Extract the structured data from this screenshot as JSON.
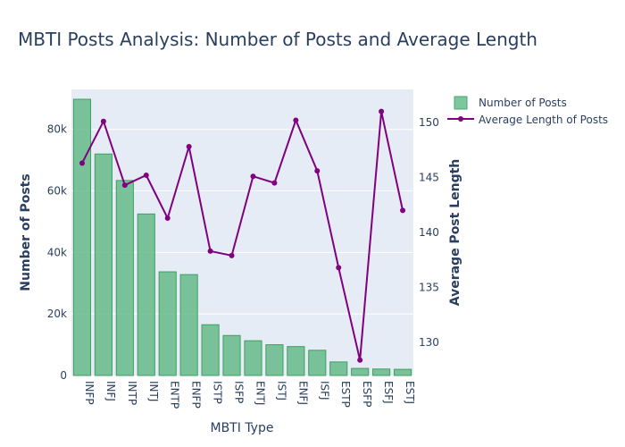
{
  "chart_data": {
    "type": "bar",
    "title": "MBTI Posts Analysis: Number of Posts and Average Length",
    "xlabel": "MBTI Type",
    "ylabel": "Number of Posts",
    "y2label": "Average Post Length",
    "categories": [
      "INFP",
      "INFJ",
      "INTP",
      "INTJ",
      "ENTP",
      "ENFP",
      "ISTP",
      "ISFP",
      "ENTJ",
      "ISTJ",
      "ENFJ",
      "ISFJ",
      "ESTP",
      "ESFP",
      "ESFJ",
      "ESTJ"
    ],
    "series": [
      {
        "name": "Number of Posts",
        "type": "bar",
        "axis": "left",
        "color": "#66bb88",
        "values": [
          89800,
          72000,
          63400,
          52500,
          33700,
          32800,
          16500,
          13000,
          11300,
          10000,
          9400,
          8200,
          4400,
          2300,
          2100,
          2000
        ]
      },
      {
        "name": "Average Length of Posts",
        "type": "line",
        "axis": "right",
        "color": "#800080",
        "values": [
          146.3,
          150.1,
          144.3,
          145.2,
          141.3,
          147.8,
          138.3,
          137.9,
          145.1,
          144.5,
          150.2,
          145.6,
          136.8,
          128.4,
          151.0,
          142.0
        ]
      }
    ],
    "ylim": [
      0,
      93000
    ],
    "y2lim": [
      127,
      153
    ],
    "yticks": [
      {
        "value": 0,
        "label": "0"
      },
      {
        "value": 20000,
        "label": "20k"
      },
      {
        "value": 40000,
        "label": "40k"
      },
      {
        "value": 60000,
        "label": "60k"
      },
      {
        "value": 80000,
        "label": "80k"
      }
    ],
    "y2ticks": [
      {
        "value": 130,
        "label": "130"
      },
      {
        "value": 135,
        "label": "135"
      },
      {
        "value": 140,
        "label": "140"
      },
      {
        "value": 145,
        "label": "145"
      },
      {
        "value": 150,
        "label": "150"
      }
    ],
    "grid": true,
    "legend": "top-right"
  }
}
